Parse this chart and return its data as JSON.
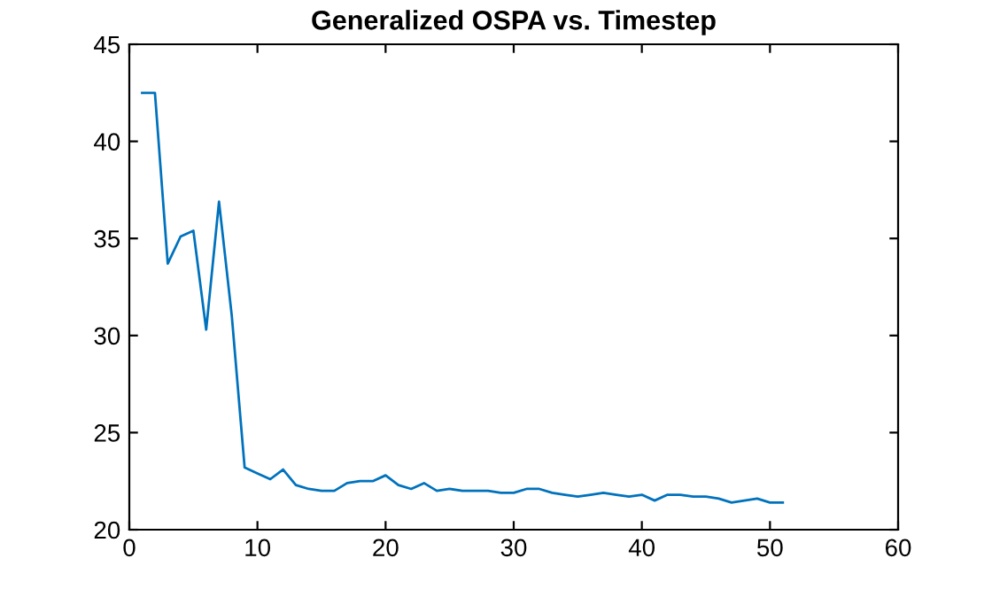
{
  "chart_data": {
    "type": "line",
    "title": "Generalized OSPA vs. Timestep",
    "x": [
      1,
      2,
      3,
      4,
      5,
      6,
      7,
      8,
      9,
      10,
      11,
      12,
      13,
      14,
      15,
      16,
      17,
      18,
      19,
      20,
      21,
      22,
      23,
      24,
      25,
      26,
      27,
      28,
      29,
      30,
      31,
      32,
      33,
      34,
      35,
      36,
      37,
      38,
      39,
      40,
      41,
      42,
      43,
      44,
      45,
      46,
      47,
      48,
      49,
      50,
      51
    ],
    "series": [
      {
        "color": "#0072bd",
        "values": [
          42.5,
          42.5,
          33.7,
          35.1,
          35.4,
          30.3,
          36.9,
          31.0,
          23.2,
          22.9,
          22.6,
          23.1,
          22.3,
          22.1,
          22.0,
          22.0,
          22.4,
          22.5,
          22.5,
          22.8,
          22.3,
          22.1,
          22.4,
          22.0,
          22.1,
          22.0,
          22.0,
          22.0,
          21.9,
          21.9,
          22.1,
          22.1,
          21.9,
          21.8,
          21.7,
          21.8,
          21.9,
          21.8,
          21.7,
          21.8,
          21.5,
          21.8,
          21.8,
          21.7,
          21.7,
          21.6,
          21.4,
          21.5,
          21.6,
          21.4,
          21.4
        ]
      }
    ],
    "xlim": [
      0,
      60
    ],
    "xticks": [
      0,
      10,
      20,
      30,
      40,
      50,
      60
    ],
    "ylim": [
      20,
      45
    ],
    "yticks": [
      20,
      25,
      30,
      35,
      40,
      45
    ]
  }
}
